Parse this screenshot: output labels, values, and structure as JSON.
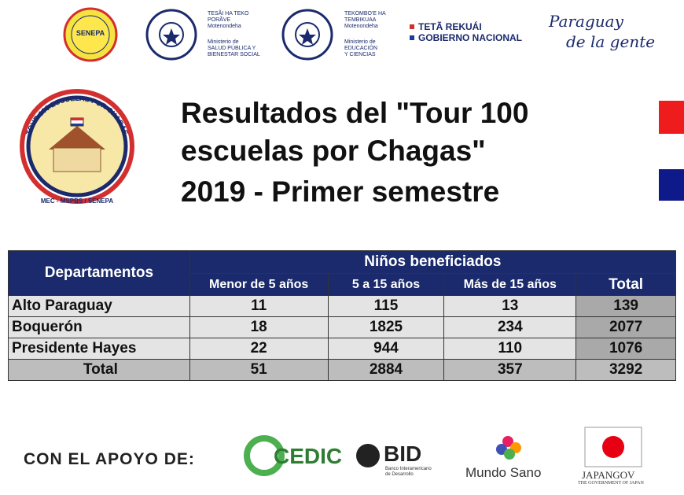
{
  "header": {
    "senepa": "SENEPA",
    "msp_top": [
      "TESÃI HA TEKO",
      "PORÃVE",
      "Motenondeha"
    ],
    "msp_bottom": [
      "Ministerio de",
      "SALUD PÚBLICA Y",
      "BIENESTAR SOCIAL"
    ],
    "mec_top": [
      "TEKOMBO'E HA",
      "TEMBIKUAA",
      "Motenondeha"
    ],
    "mec_bottom": [
      "Ministerio de",
      "EDUCACIÓN",
      "Y CIENCIAS"
    ],
    "gobierno": [
      "TETÃ REKUÁI",
      "GOBIERNO NACIONAL"
    ],
    "slogan": [
      "Paraguay",
      "de la gente"
    ]
  },
  "tour_logo": {
    "arc": "TOUR 100 ESCUELAS POR CHAGAS",
    "bottom": "MEC - MSPBS / SENEPA"
  },
  "title": [
    "Resultados del \"Tour 100",
    "escuelas por Chagas\"",
    "2019 - Primer semestre"
  ],
  "table": {
    "corner": "Departamentos",
    "group": "Niños beneficiados",
    "columns": [
      "Menor de 5 años",
      "5 a 15 años",
      "Más de 15 años",
      "Total"
    ],
    "rows": [
      [
        "Alto Paraguay",
        11,
        115,
        13,
        139
      ],
      [
        "Boquerón",
        18,
        1825,
        234,
        2077
      ],
      [
        "Presidente Hayes",
        22,
        944,
        110,
        1076
      ],
      [
        "Total",
        51,
        2884,
        357,
        3292
      ]
    ]
  },
  "footer": {
    "label": "CON EL APOYO DE:",
    "cedic": "CEDIC",
    "bid": "BID",
    "bid_sub": [
      "Banco Interamericano",
      "de Desarrollo"
    ],
    "mundo_sano": "Mundo Sano",
    "japan": "JAPANGOV",
    "japan_sub": "THE GOVERNMENT OF JAPAN"
  }
}
